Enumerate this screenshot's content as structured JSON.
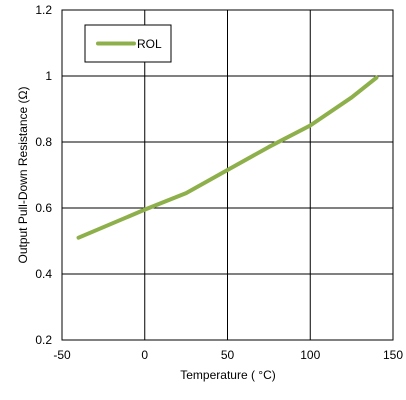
{
  "chart_data": {
    "type": "line",
    "xlabel": "Temperature ( °C)",
    "ylabel": "Output Pull-Down Resistance (Ω)",
    "xlim": [
      -50,
      150
    ],
    "ylim": [
      0.2,
      1.2
    ],
    "x_ticks": [
      -50,
      0,
      50,
      100,
      150
    ],
    "y_ticks": [
      0.2,
      0.4,
      0.6,
      0.8,
      1,
      1.2
    ],
    "x_tick_labels": [
      "-50",
      "0",
      "50",
      "100",
      "150"
    ],
    "y_tick_labels": [
      "0.2",
      "0.4",
      "0.6",
      "0.8",
      "1",
      "1.2"
    ],
    "grid": true,
    "legend_position": "top-left",
    "series": [
      {
        "name": "ROL",
        "color": "#8db04b",
        "x": [
          -40,
          0,
          25,
          50,
          75,
          100,
          125,
          140
        ],
        "y": [
          0.51,
          0.595,
          0.645,
          0.715,
          0.785,
          0.85,
          0.935,
          0.995
        ]
      }
    ]
  }
}
